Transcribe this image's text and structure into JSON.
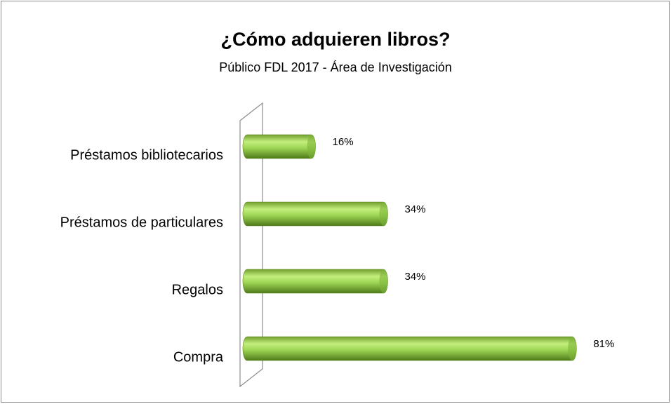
{
  "chart_data": {
    "type": "bar",
    "title": "¿Cómo adquieren libros?",
    "subtitle": "Público FDL 2017 - Área de Investigación",
    "categories": [
      "Préstamos bibliotecarios",
      "Préstamos de particulares",
      "Regalos",
      "Compra"
    ],
    "values": [
      16,
      34,
      34,
      81
    ],
    "value_labels": [
      "16%",
      "34%",
      "34%",
      "81%"
    ],
    "color": "#92d050"
  }
}
